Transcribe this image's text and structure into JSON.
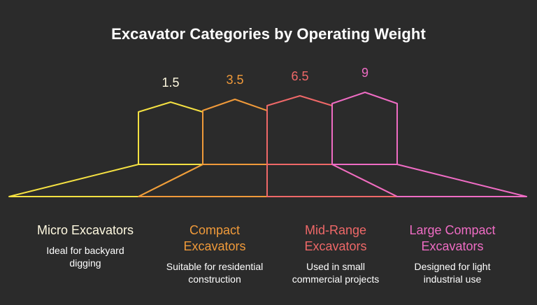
{
  "title": "Excavator Categories by Operating Weight",
  "categories": [
    {
      "name": "Micro Excavators",
      "value": "1.5",
      "description": "Ideal for backyard digging",
      "color": "#f5e142",
      "label_color": "#fff9e0"
    },
    {
      "name": "Compact Excavators",
      "value": "3.5",
      "description": "Suitable for residential construction",
      "color": "#f09a3a",
      "label_color": "#f09a3a"
    },
    {
      "name": "Mid-Range Excavators",
      "value": "6.5",
      "description": "Used in small commercial projects",
      "color": "#ef6868",
      "label_color": "#ef6868"
    },
    {
      "name": "Large Compact Excavators",
      "value": "9",
      "description": "Designed for light industrial use",
      "color": "#ef6cc4",
      "label_color": "#ef6cc4"
    }
  ]
}
